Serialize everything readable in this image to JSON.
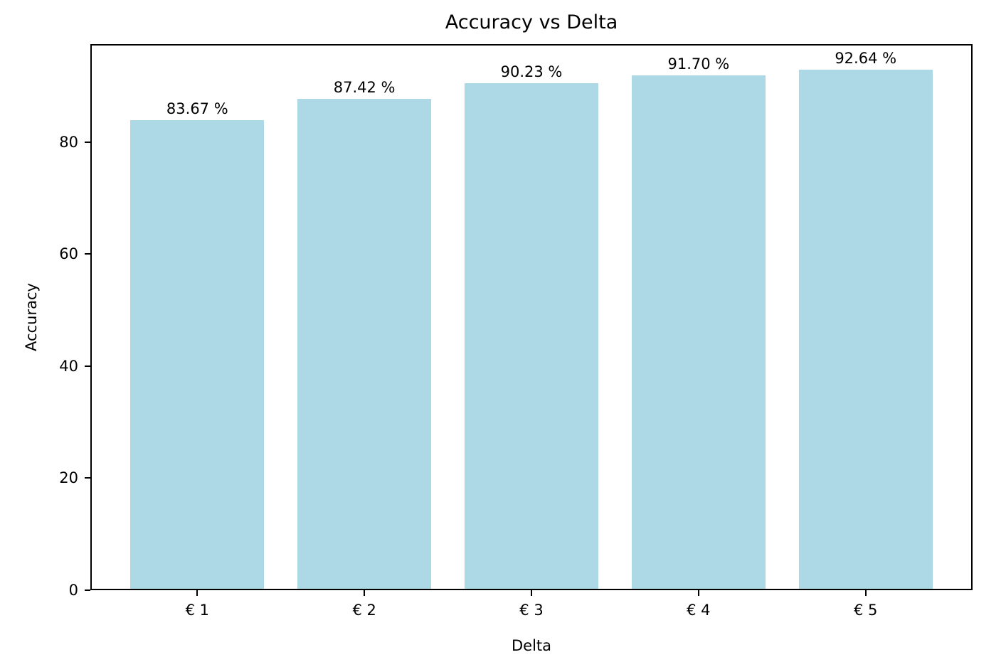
{
  "chart_data": {
    "type": "bar",
    "title": "Accuracy vs Delta",
    "xlabel": "Delta",
    "ylabel": "Accuracy",
    "categories": [
      "€ 1",
      "€ 2",
      "€ 3",
      "€ 4",
      "€ 5"
    ],
    "values": [
      83.67,
      87.42,
      90.23,
      91.7,
      92.64
    ],
    "bar_labels": [
      "83.67 %",
      "87.42 %",
      "90.23 %",
      "91.70 %",
      "92.64 %"
    ],
    "yticks": [
      0,
      20,
      40,
      60,
      80
    ],
    "ylim": [
      0,
      97.5
    ],
    "xlim": [
      -0.64,
      4.64
    ],
    "bar_width_units": 0.8,
    "grid": false,
    "legend_position": "none",
    "colors": {
      "bar_fill": "#ADD8E6",
      "axis": "#000000",
      "text": "#000000",
      "background": "#FFFFFF"
    }
  }
}
